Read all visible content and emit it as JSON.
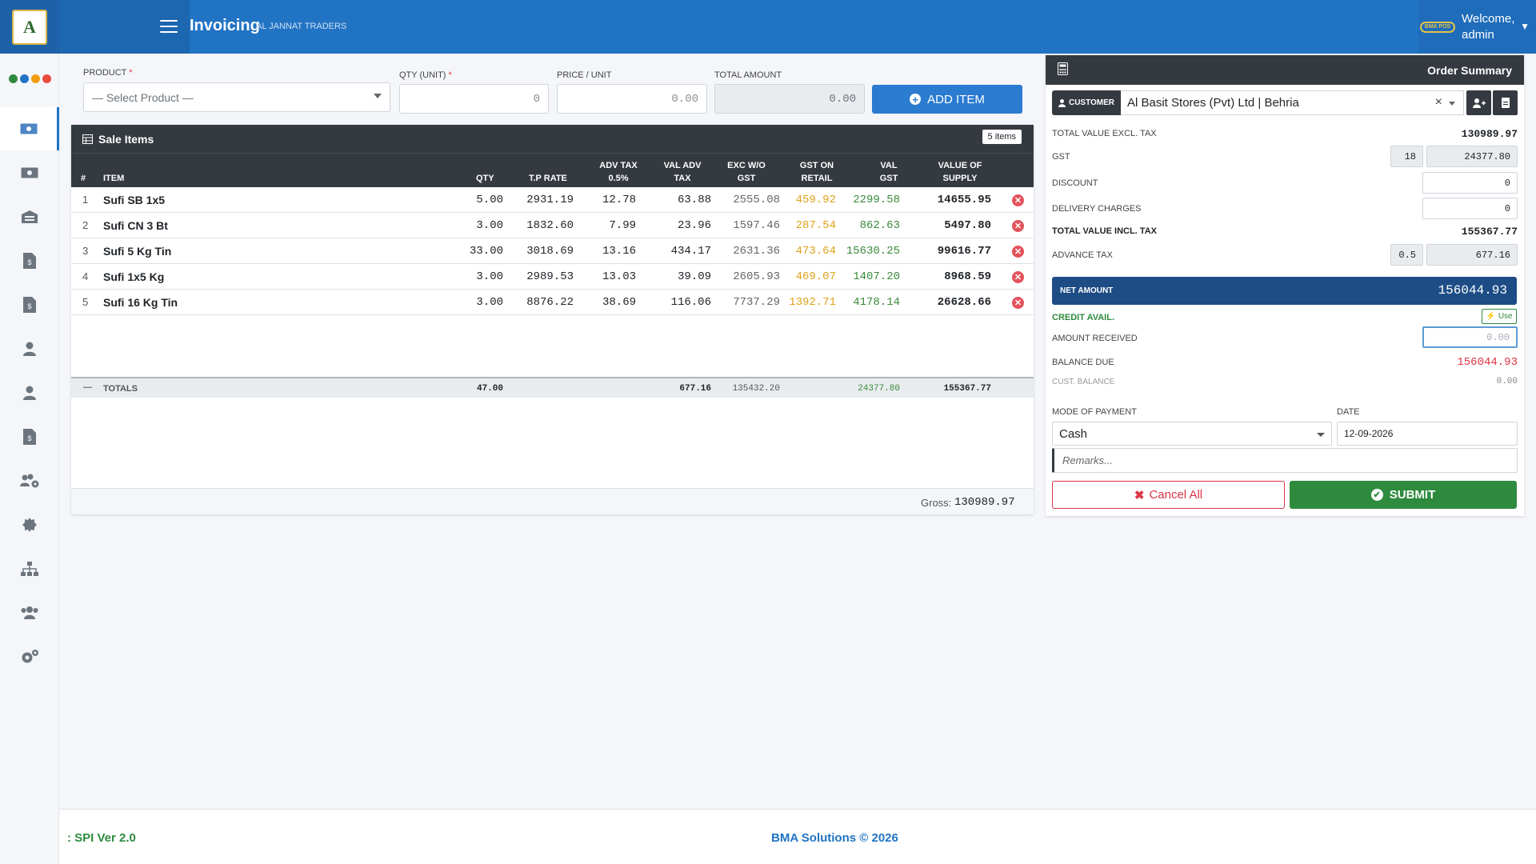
{
  "header": {
    "title": "Invoicing",
    "subtitle": "AL JANNAT TRADERS",
    "badge": "BMA POS",
    "welcome": "Welcome,",
    "user": "admin"
  },
  "form": {
    "product_label": "PRODUCT",
    "product_placeholder": "— Select Product —",
    "qty_label": "QTY (UNIT)",
    "qty_value": "0",
    "price_label": "PRICE / UNIT",
    "price_value": "0.00",
    "total_label": "TOTAL AMOUNT",
    "total_value": "0.00",
    "add_button": "ADD ITEM"
  },
  "sale_items": {
    "title": "Sale Items",
    "count": "5 items",
    "columns": [
      "#",
      "ITEM",
      "QTY",
      "T.P RATE",
      "ADV TAX",
      "0.5%",
      "VAL ADV",
      "TAX",
      "EXC W/O",
      "GST",
      "GST ON",
      "RETAIL",
      "VAL",
      "GST",
      "VALUE OF",
      "SUPPLY"
    ],
    "rows": [
      {
        "no": "1",
        "item": "Sufi SB 1x5",
        "qty": "5.00",
        "tp": "2931.19",
        "adv": "12.78",
        "valadv": "63.88",
        "exc": "2555.08",
        "gstret": "459.92",
        "valgst": "2299.58",
        "supply": "14655.95"
      },
      {
        "no": "2",
        "item": "Sufi CN 3 Bt",
        "qty": "3.00",
        "tp": "1832.60",
        "adv": "7.99",
        "valadv": "23.96",
        "exc": "1597.46",
        "gstret": "287.54",
        "valgst": "862.63",
        "supply": "5497.80"
      },
      {
        "no": "3",
        "item": "Sufi 5 Kg Tin",
        "qty": "33.00",
        "tp": "3018.69",
        "adv": "13.16",
        "valadv": "434.17",
        "exc": "2631.36",
        "gstret": "473.64",
        "valgst": "15630.25",
        "supply": "99616.77"
      },
      {
        "no": "4",
        "item": "Sufi 1x5 Kg",
        "qty": "3.00",
        "tp": "2989.53",
        "adv": "13.03",
        "valadv": "39.09",
        "exc": "2605.93",
        "gstret": "469.07",
        "valgst": "1407.20",
        "supply": "8968.59"
      },
      {
        "no": "5",
        "item": "Sufi 16 Kg Tin",
        "qty": "3.00",
        "tp": "8876.22",
        "adv": "38.69",
        "valadv": "116.06",
        "exc": "7737.29",
        "gstret": "1392.71",
        "valgst": "4178.14",
        "supply": "26628.66"
      }
    ],
    "totals": {
      "dash": "—",
      "label": "TOTALS",
      "qty": "47.00",
      "valadv": "677.16",
      "exc": "135432.20",
      "valgst": "24377.80",
      "supply": "155367.77"
    },
    "gross_label": "Gross:",
    "gross_value": "130989.97"
  },
  "summary": {
    "title": "Order Summary",
    "customer_label": "CUSTOMER",
    "customer_value": "Al Basit Stores (Pvt) Ltd | Behria",
    "clear": "×",
    "total_excl_label": "TOTAL VALUE EXCL. TAX",
    "total_excl": "130989.97",
    "gst_label": "GST",
    "gst_rate": "18",
    "gst_value": "24377.80",
    "discount_label": "DISCOUNT",
    "discount_value": "0",
    "delivery_label": "DELIVERY CHARGES",
    "delivery_value": "0",
    "total_incl_label": "TOTAL VALUE INCL. TAX",
    "total_incl": "155367.77",
    "adv_tax_label": "ADVANCE TAX",
    "adv_tax_rate": "0.5",
    "adv_tax_value": "677.16",
    "net_label": "NET AMOUNT",
    "net_value": "156044.93",
    "credit_label": "CREDIT AVAIL.",
    "use_button": "Use",
    "received_label": "AMOUNT RECEIVED",
    "received_placeholder": "0.00",
    "balance_due_label": "BALANCE DUE",
    "balance_due": "156044.93",
    "cust_balance_label": "CUST. BALANCE",
    "cust_balance": "0.00",
    "mode_label": "MODE OF PAYMENT",
    "mode_value": "Cash",
    "date_label": "DATE",
    "date_value": "12-09-2026",
    "remarks_placeholder": "Remarks...",
    "cancel_button": "Cancel All",
    "submit_button": "SUBMIT"
  },
  "footer": {
    "version": ": SPI Ver 2.0",
    "copyright": "BMA Solutions © 2026"
  },
  "colors": {
    "primary": "#2173c4",
    "dark": "#343a40",
    "net": "#1e4d86",
    "success": "#2e8b3e",
    "danger": "#dc3545",
    "gst_retail": "#e0a21a",
    "val_gst": "#3a8a3a"
  }
}
